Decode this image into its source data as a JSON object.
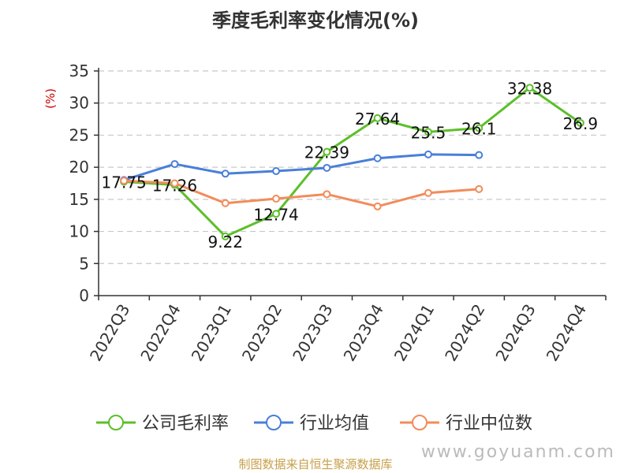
{
  "chart_data": {
    "type": "line",
    "title": "季度毛利率变化情况(%)",
    "ylabel": "(%)",
    "ylim": [
      0,
      35
    ],
    "yticks": [
      0,
      5,
      10,
      15,
      20,
      25,
      30,
      35
    ],
    "grid": true,
    "legend_position": "bottom",
    "categories": [
      "2022Q3",
      "2022Q4",
      "2023Q1",
      "2023Q2",
      "2023Q3",
      "2023Q4",
      "2024Q1",
      "2024Q2",
      "2024Q3",
      "2024Q4"
    ],
    "series": [
      {
        "name": "公司毛利率",
        "color": "#5cbf2a",
        "values": [
          17.75,
          17.26,
          9.22,
          12.74,
          22.39,
          27.64,
          25.5,
          26.1,
          32.38,
          26.9
        ],
        "labels": [
          "17.75",
          "17.26",
          "9.22",
          "12.74",
          "22.39",
          "27.64",
          "25.5",
          "26.1",
          "32.38",
          "26.9"
        ]
      },
      {
        "name": "行业均值",
        "color": "#4a7fd8",
        "values": [
          18.0,
          20.5,
          19.0,
          19.4,
          19.9,
          21.4,
          22.0,
          21.9,
          null,
          null
        ]
      },
      {
        "name": "行业中位数",
        "color": "#f28c5a",
        "values": [
          17.9,
          17.5,
          14.4,
          15.1,
          15.8,
          13.9,
          16.0,
          16.6,
          null,
          null
        ]
      }
    ]
  },
  "footer": {
    "source": "制图数据来自恒生聚源数据库",
    "watermark": "www.goyuanm.com"
  }
}
